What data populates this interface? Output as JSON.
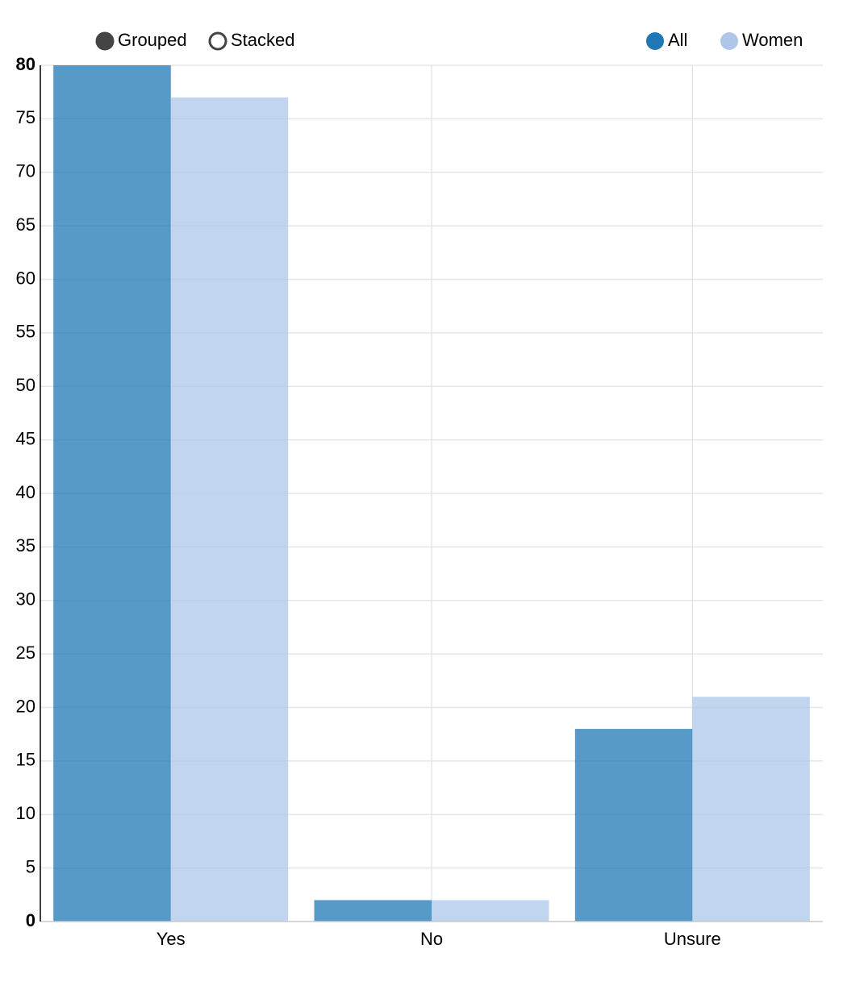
{
  "chart_data": {
    "type": "bar",
    "controls": [
      "Grouped",
      "Stacked"
    ],
    "categories": [
      "Yes",
      "No",
      "Unsure"
    ],
    "series": [
      {
        "name": "All",
        "color": "#1f77b4",
        "values": [
          80,
          2,
          18
        ]
      },
      {
        "name": "Women",
        "color": "#aec7e8",
        "values": [
          77,
          2,
          21
        ]
      }
    ],
    "ylim": [
      0,
      80
    ],
    "yticks": [
      0,
      5,
      10,
      15,
      20,
      25,
      30,
      35,
      40,
      45,
      50,
      55,
      60,
      65,
      70,
      75,
      80
    ],
    "grid": true
  }
}
